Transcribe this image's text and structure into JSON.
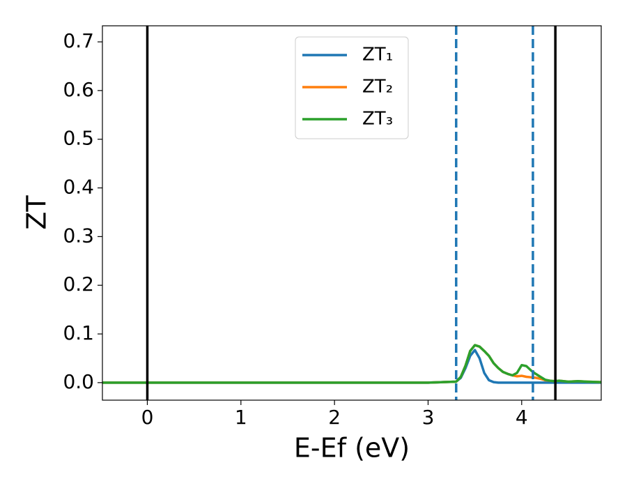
{
  "chart_data": {
    "type": "line",
    "xlabel": "E-Ef (eV)",
    "ylabel": "ZT",
    "x": [
      -0.48,
      3.0,
      3.3,
      3.35,
      3.4,
      3.45,
      3.5,
      3.55,
      3.6,
      3.65,
      3.7,
      3.75,
      3.8,
      3.85,
      3.9,
      3.95,
      4.0,
      4.05,
      4.1,
      4.15,
      4.2,
      4.25,
      4.3,
      4.35,
      4.4,
      4.5,
      4.6,
      4.7,
      4.85
    ],
    "series": [
      {
        "name": "ZT₁",
        "color": "#1f77b4",
        "values": [
          0,
          0,
          0.002,
          0.01,
          0.03,
          0.055,
          0.067,
          0.05,
          0.02,
          0.005,
          0.001,
          0,
          0,
          0,
          0,
          0,
          0,
          0,
          0,
          0,
          0,
          0,
          0,
          0,
          0,
          0,
          0,
          0,
          0
        ]
      },
      {
        "name": "ZT₂",
        "color": "#ff7f0e",
        "values": [
          0,
          0,
          0.002,
          0.012,
          0.035,
          0.065,
          0.077,
          0.074,
          0.065,
          0.055,
          0.04,
          0.03,
          0.022,
          0.018,
          0.015,
          0.013,
          0.014,
          0.012,
          0.011,
          0.01,
          0.008,
          0.005,
          0.004,
          0.003,
          0.004,
          0.002,
          0.003,
          0.002,
          0.001
        ]
      },
      {
        "name": "ZT₃",
        "color": "#2ca02c",
        "values": [
          0,
          0,
          0.002,
          0.012,
          0.035,
          0.065,
          0.077,
          0.074,
          0.065,
          0.055,
          0.04,
          0.03,
          0.022,
          0.018,
          0.015,
          0.02,
          0.036,
          0.034,
          0.025,
          0.018,
          0.012,
          0.006,
          0.004,
          0.003,
          0.004,
          0.002,
          0.003,
          0.002,
          0.001
        ]
      }
    ],
    "vlines": [
      {
        "x": 0,
        "color": "#000000",
        "dashed": false
      },
      {
        "x": 4.36,
        "color": "#000000",
        "dashed": false
      },
      {
        "x": 3.3,
        "color": "#1f77b4",
        "dashed": true
      },
      {
        "x": 4.12,
        "color": "#1f77b4",
        "dashed": true
      }
    ],
    "xlim": [
      -0.48,
      4.85
    ],
    "ylim": [
      -0.036,
      0.733
    ],
    "xticks": [
      0,
      1,
      2,
      3,
      4
    ],
    "yticks": [
      {
        "value": 0,
        "label": "0.0"
      },
      0.1,
      0.2,
      0.3,
      0.4,
      0.5,
      0.6,
      0.7
    ],
    "legend": "upper center",
    "grid": false
  }
}
